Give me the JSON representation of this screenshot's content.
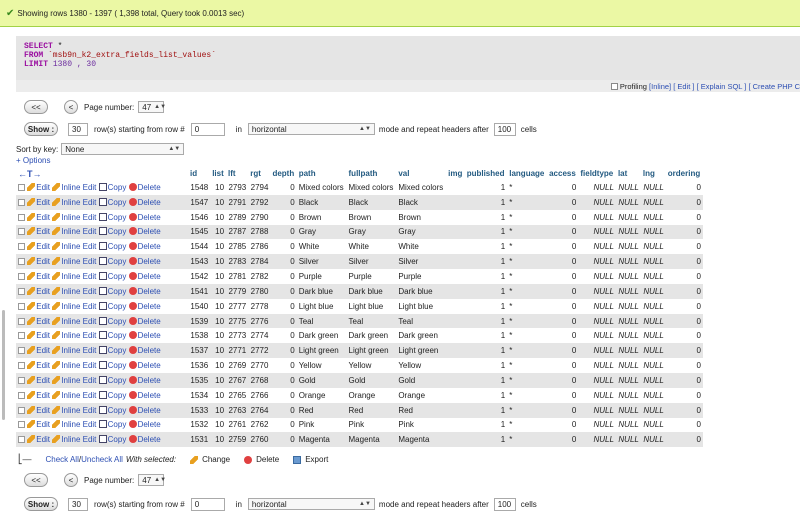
{
  "status": {
    "message": "Showing rows 1380 - 1397 ( 1,398 total, Query took 0.0013 sec)"
  },
  "sql": {
    "select_kw": "SELECT",
    "select_rest": " *",
    "from_kw": "FROM",
    "table": " `msb9n_k2_extra_fields_list_values`",
    "limit_kw": "LIMIT",
    "limit_vals": " 1380 , 30"
  },
  "sql_links": {
    "profiling": "Profiling",
    "inline": "[Inline]",
    "edit": "[ Edit ]",
    "explain": "[ Explain SQL ]",
    "create_php": "[ Create PHP C"
  },
  "nav_top": {
    "first": "<<",
    "prev": "<",
    "page_label": "Page number:",
    "page_value": "47",
    "show": "Show :",
    "rows": "30",
    "rows_label": "row(s) starting from row #",
    "start": "0",
    "in_label": "in",
    "mode": "horizontal",
    "mode_label": "mode and repeat headers after",
    "repeat": "100",
    "cells": "cells"
  },
  "sort": {
    "label": "Sort by key:",
    "value": "None"
  },
  "options_link": "+ Options",
  "columns": [
    "id",
    "list",
    "lft",
    "rgt",
    "depth",
    "path",
    "fullpath",
    "val",
    "img",
    "published",
    "language",
    "access",
    "fieldtype",
    "lat",
    "lng",
    "ordering"
  ],
  "actions": {
    "edit": "Edit",
    "inline": "Inline Edit",
    "copy": "Copy",
    "delete": "Delete"
  },
  "rows": [
    {
      "id": "1548",
      "list": "10",
      "lft": "2793",
      "rgt": "2794",
      "depth": "0",
      "path": "Mixed colors",
      "fullpath": "Mixed colors",
      "val": "Mixed colors",
      "img": "",
      "published": "1",
      "language": "*",
      "access": "0",
      "fieldtype": "NULL",
      "lat": "NULL",
      "lng": "NULL",
      "ordering": "0"
    },
    {
      "id": "1547",
      "list": "10",
      "lft": "2791",
      "rgt": "2792",
      "depth": "0",
      "path": "Black",
      "fullpath": "Black",
      "val": "Black",
      "img": "",
      "published": "1",
      "language": "*",
      "access": "0",
      "fieldtype": "NULL",
      "lat": "NULL",
      "lng": "NULL",
      "ordering": "0"
    },
    {
      "id": "1546",
      "list": "10",
      "lft": "2789",
      "rgt": "2790",
      "depth": "0",
      "path": "Brown",
      "fullpath": "Brown",
      "val": "Brown",
      "img": "",
      "published": "1",
      "language": "*",
      "access": "0",
      "fieldtype": "NULL",
      "lat": "NULL",
      "lng": "NULL",
      "ordering": "0"
    },
    {
      "id": "1545",
      "list": "10",
      "lft": "2787",
      "rgt": "2788",
      "depth": "0",
      "path": "Gray",
      "fullpath": "Gray",
      "val": "Gray",
      "img": "",
      "published": "1",
      "language": "*",
      "access": "0",
      "fieldtype": "NULL",
      "lat": "NULL",
      "lng": "NULL",
      "ordering": "0"
    },
    {
      "id": "1544",
      "list": "10",
      "lft": "2785",
      "rgt": "2786",
      "depth": "0",
      "path": "White",
      "fullpath": "White",
      "val": "White",
      "img": "",
      "published": "1",
      "language": "*",
      "access": "0",
      "fieldtype": "NULL",
      "lat": "NULL",
      "lng": "NULL",
      "ordering": "0"
    },
    {
      "id": "1543",
      "list": "10",
      "lft": "2783",
      "rgt": "2784",
      "depth": "0",
      "path": "Silver",
      "fullpath": "Silver",
      "val": "Silver",
      "img": "",
      "published": "1",
      "language": "*",
      "access": "0",
      "fieldtype": "NULL",
      "lat": "NULL",
      "lng": "NULL",
      "ordering": "0"
    },
    {
      "id": "1542",
      "list": "10",
      "lft": "2781",
      "rgt": "2782",
      "depth": "0",
      "path": "Purple",
      "fullpath": "Purple",
      "val": "Purple",
      "img": "",
      "published": "1",
      "language": "*",
      "access": "0",
      "fieldtype": "NULL",
      "lat": "NULL",
      "lng": "NULL",
      "ordering": "0"
    },
    {
      "id": "1541",
      "list": "10",
      "lft": "2779",
      "rgt": "2780",
      "depth": "0",
      "path": "Dark blue",
      "fullpath": "Dark blue",
      "val": "Dark blue",
      "img": "",
      "published": "1",
      "language": "*",
      "access": "0",
      "fieldtype": "NULL",
      "lat": "NULL",
      "lng": "NULL",
      "ordering": "0"
    },
    {
      "id": "1540",
      "list": "10",
      "lft": "2777",
      "rgt": "2778",
      "depth": "0",
      "path": "Light blue",
      "fullpath": "Light blue",
      "val": "Light blue",
      "img": "",
      "published": "1",
      "language": "*",
      "access": "0",
      "fieldtype": "NULL",
      "lat": "NULL",
      "lng": "NULL",
      "ordering": "0"
    },
    {
      "id": "1539",
      "list": "10",
      "lft": "2775",
      "rgt": "2776",
      "depth": "0",
      "path": "Teal",
      "fullpath": "Teal",
      "val": "Teal",
      "img": "",
      "published": "1",
      "language": "*",
      "access": "0",
      "fieldtype": "NULL",
      "lat": "NULL",
      "lng": "NULL",
      "ordering": "0"
    },
    {
      "id": "1538",
      "list": "10",
      "lft": "2773",
      "rgt": "2774",
      "depth": "0",
      "path": "Dark green",
      "fullpath": "Dark green",
      "val": "Dark green",
      "img": "",
      "published": "1",
      "language": "*",
      "access": "0",
      "fieldtype": "NULL",
      "lat": "NULL",
      "lng": "NULL",
      "ordering": "0"
    },
    {
      "id": "1537",
      "list": "10",
      "lft": "2771",
      "rgt": "2772",
      "depth": "0",
      "path": "Light green",
      "fullpath": "Light green",
      "val": "Light green",
      "img": "",
      "published": "1",
      "language": "*",
      "access": "0",
      "fieldtype": "NULL",
      "lat": "NULL",
      "lng": "NULL",
      "ordering": "0"
    },
    {
      "id": "1536",
      "list": "10",
      "lft": "2769",
      "rgt": "2770",
      "depth": "0",
      "path": "Yellow",
      "fullpath": "Yellow",
      "val": "Yellow",
      "img": "",
      "published": "1",
      "language": "*",
      "access": "0",
      "fieldtype": "NULL",
      "lat": "NULL",
      "lng": "NULL",
      "ordering": "0"
    },
    {
      "id": "1535",
      "list": "10",
      "lft": "2767",
      "rgt": "2768",
      "depth": "0",
      "path": "Gold",
      "fullpath": "Gold",
      "val": "Gold",
      "img": "",
      "published": "1",
      "language": "*",
      "access": "0",
      "fieldtype": "NULL",
      "lat": "NULL",
      "lng": "NULL",
      "ordering": "0"
    },
    {
      "id": "1534",
      "list": "10",
      "lft": "2765",
      "rgt": "2766",
      "depth": "0",
      "path": "Orange",
      "fullpath": "Orange",
      "val": "Orange",
      "img": "",
      "published": "1",
      "language": "*",
      "access": "0",
      "fieldtype": "NULL",
      "lat": "NULL",
      "lng": "NULL",
      "ordering": "0"
    },
    {
      "id": "1533",
      "list": "10",
      "lft": "2763",
      "rgt": "2764",
      "depth": "0",
      "path": "Red",
      "fullpath": "Red",
      "val": "Red",
      "img": "",
      "published": "1",
      "language": "*",
      "access": "0",
      "fieldtype": "NULL",
      "lat": "NULL",
      "lng": "NULL",
      "ordering": "0"
    },
    {
      "id": "1532",
      "list": "10",
      "lft": "2761",
      "rgt": "2762",
      "depth": "0",
      "path": "Pink",
      "fullpath": "Pink",
      "val": "Pink",
      "img": "",
      "published": "1",
      "language": "*",
      "access": "0",
      "fieldtype": "NULL",
      "lat": "NULL",
      "lng": "NULL",
      "ordering": "0"
    },
    {
      "id": "1531",
      "list": "10",
      "lft": "2759",
      "rgt": "2760",
      "depth": "0",
      "path": "Magenta",
      "fullpath": "Magenta",
      "val": "Magenta",
      "img": "",
      "published": "1",
      "language": "*",
      "access": "0",
      "fieldtype": "NULL",
      "lat": "NULL",
      "lng": "NULL",
      "ordering": "0"
    }
  ],
  "bulk": {
    "check_all": "Check All",
    "separator": " / ",
    "uncheck_all": "Uncheck All",
    "with_selected": "With selected:",
    "change": "Change",
    "delete": "Delete",
    "export": "Export"
  },
  "nav_bottom": {
    "first": "<<",
    "prev": "<",
    "page_label": "Page number:",
    "page_value": "47",
    "show": "Show :",
    "rows": "30",
    "rows_label": "row(s) starting from row #",
    "start": "0",
    "in_label": "in",
    "mode": "horizontal",
    "mode_label": "mode and repeat headers after",
    "repeat": "100",
    "cells": "cells"
  }
}
